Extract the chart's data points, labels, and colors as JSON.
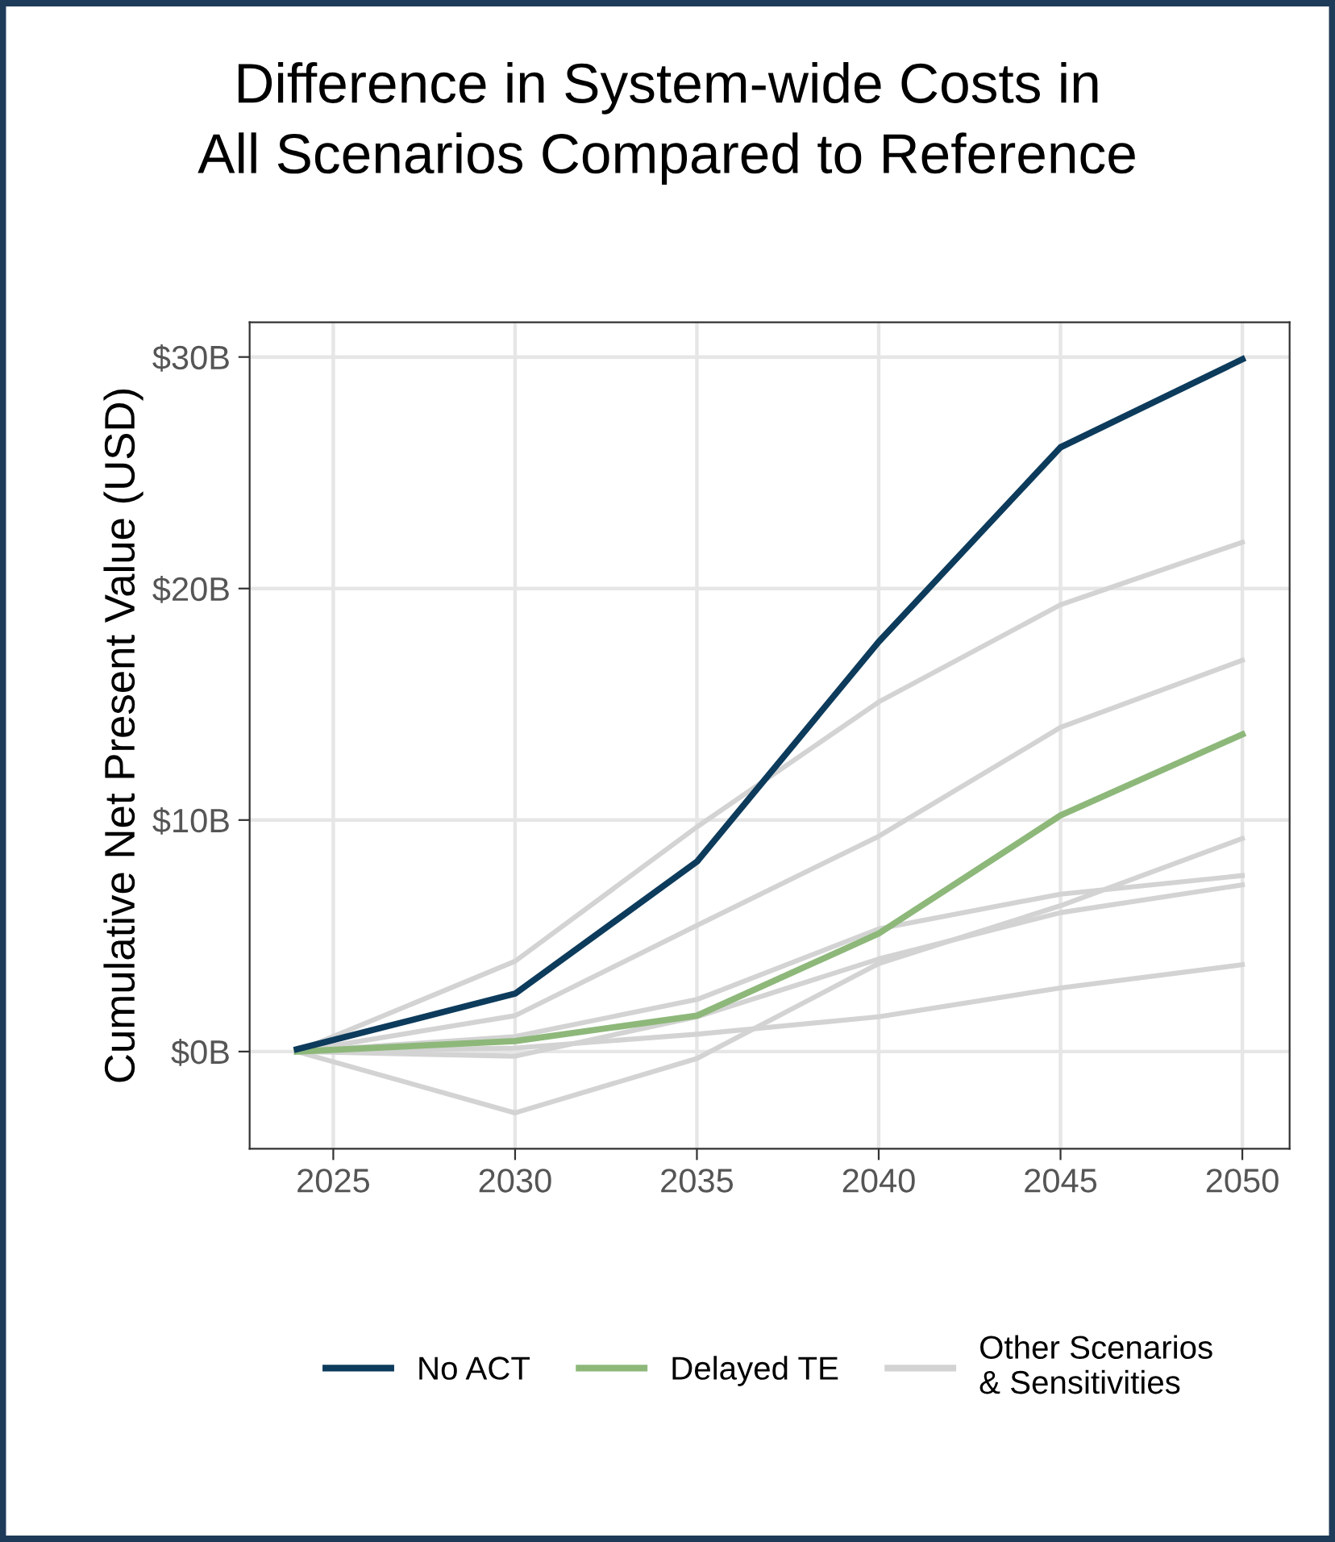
{
  "chart_data": {
    "type": "line",
    "title": "Difference in System-wide Costs in\nAll Scenarios Compared to Reference",
    "ylabel": "Cumulative Net Present Value (USD)",
    "x": [
      2024,
      2030,
      2035,
      2040,
      2045,
      2050
    ],
    "series": [
      {
        "color": "#d3d3d3",
        "name": "Other Scenarios\n& Sensitivities",
        "values": [
          0,
          3.9,
          9.7,
          15.1,
          19.3,
          22.0
        ]
      },
      {
        "color": "#d3d3d3",
        "values": [
          0,
          1.55,
          5.45,
          9.3,
          14.0,
          16.9
        ]
      },
      {
        "color": "#d3d3d3",
        "values": [
          0,
          0.65,
          2.25,
          5.3,
          6.8,
          7.6
        ]
      },
      {
        "color": "#d3d3d3",
        "values": [
          0,
          -0.2,
          1.5,
          4.0,
          6.0,
          7.2
        ]
      },
      {
        "color": "#d3d3d3",
        "values": [
          0,
          -2.65,
          -0.3,
          3.8,
          6.3,
          9.2
        ]
      },
      {
        "color": "#d3d3d3",
        "values": [
          0,
          0.15,
          0.75,
          1.5,
          2.75,
          3.75
        ]
      },
      {
        "color": "#8db87a",
        "name": "Delayed TE",
        "values": [
          0,
          0.45,
          1.55,
          5.1,
          10.2,
          13.7
        ]
      },
      {
        "color": "#0d3b5c",
        "name": "No ACT",
        "values": [
          0.1,
          2.5,
          8.2,
          17.7,
          26.1,
          29.9
        ]
      }
    ],
    "xlim": [
      2022.7,
      2051.3
    ],
    "xticks": [
      2025,
      2030,
      2035,
      2040,
      2045,
      2050
    ],
    "ylim": [
      -4.2,
      31.5
    ],
    "yticks": [
      {
        "value": 0,
        "label": "$0B"
      },
      {
        "value": 10,
        "label": "$10B"
      },
      {
        "value": 20,
        "label": "$20B"
      },
      {
        "value": 30,
        "label": "$30B"
      }
    ],
    "grid": true,
    "legend": "bottom",
    "marker": "none",
    "line_style": "solid"
  }
}
